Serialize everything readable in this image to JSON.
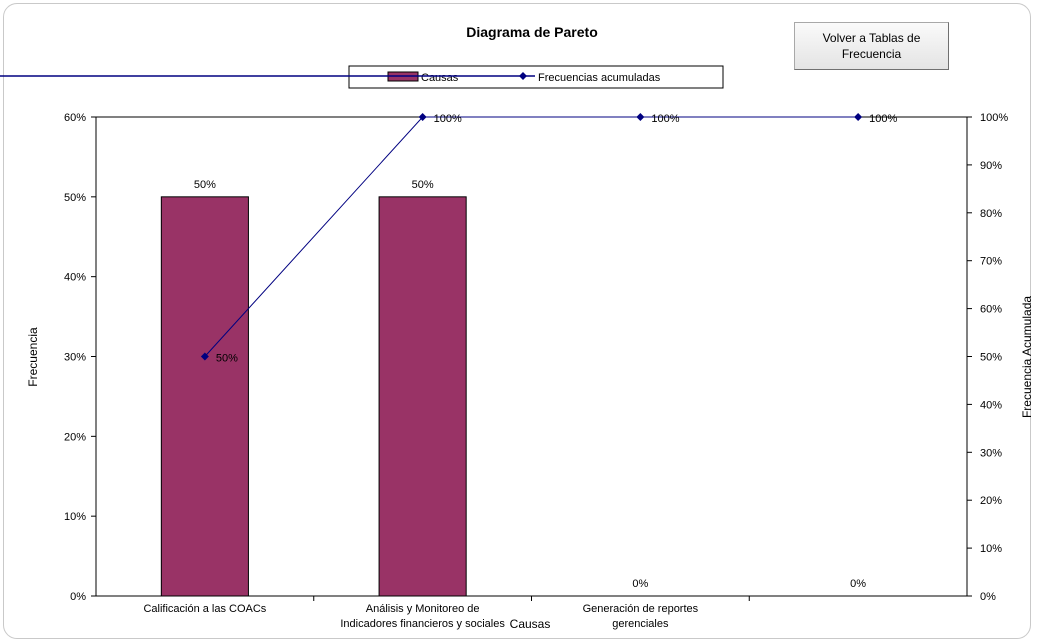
{
  "button": {
    "label": "Volver a Tablas de Frecuencia"
  },
  "chart_data": {
    "type": "bar",
    "title": "Diagrama de Pareto",
    "xlabel": "Causas",
    "ylabel": "Frecuencia",
    "y2label": "Frecuencia Acumulada",
    "categories": [
      [
        "Calificación a las COACs"
      ],
      [
        "Análisis y Monitoreo de",
        "Indicadores financieros y sociales"
      ],
      [
        "Generación de reportes",
        "gerenciales"
      ],
      [
        ""
      ]
    ],
    "series": [
      {
        "name": "Causas",
        "type": "bar",
        "axis": "left",
        "color": "#993366",
        "values": [
          0.5,
          0.5,
          0,
          0
        ],
        "labels": [
          "50%",
          "50%",
          "0%",
          "0%"
        ]
      },
      {
        "name": "Frecuencias acumuladas",
        "type": "line",
        "axis": "right",
        "color": "#000080",
        "values": [
          0.5,
          1.0,
          1.0,
          1.0
        ],
        "labels": [
          "50%",
          "100%",
          "100%",
          "100%"
        ]
      }
    ],
    "ylim": [
      0,
      0.6
    ],
    "y2lim": [
      0,
      1.0
    ],
    "yticks": [
      "0%",
      "10%",
      "20%",
      "30%",
      "40%",
      "50%",
      "60%"
    ],
    "y2ticks": [
      "0%",
      "10%",
      "20%",
      "30%",
      "40%",
      "50%",
      "60%",
      "70%",
      "80%",
      "90%",
      "100%"
    ],
    "grid": false,
    "legend": "top-center"
  }
}
